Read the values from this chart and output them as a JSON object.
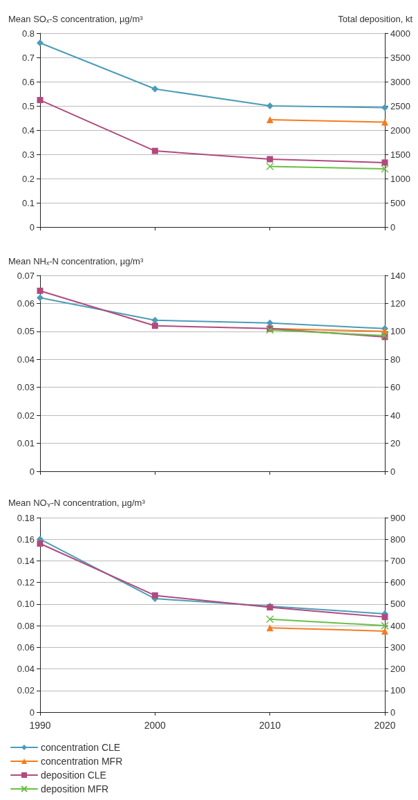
{
  "chart_data": [
    {
      "type": "line",
      "ylabel": "Mean SOₓ-S concentration, µg/m³",
      "y2label": "Total deposition, kt",
      "xlim": [
        1990,
        2020
      ],
      "xticks": [
        1990,
        2000,
        2010,
        2020
      ],
      "ylim": [
        0,
        0.8
      ],
      "yticks": [
        0,
        0.1,
        0.2,
        0.3,
        0.4,
        0.5,
        0.6,
        0.7,
        0.8
      ],
      "y2lim": [
        0,
        4000
      ],
      "y2ticks": [
        0,
        500,
        1000,
        1500,
        2000,
        2500,
        3000,
        3500,
        4000
      ],
      "grid": "y",
      "tick_labels": "y",
      "line_style": "solid",
      "series": [
        {
          "color": "#4b9cb8",
          "marker": "diamond",
          "x": [
            1990,
            2000,
            2010,
            2020
          ],
          "values": [
            0.76,
            0.57,
            0.5,
            0.493
          ]
        },
        {
          "color": "#f47c20",
          "marker": "triangle",
          "x": [
            2010,
            2020
          ],
          "values": [
            0.443,
            0.433
          ]
        },
        {
          "color": "#b04a7e",
          "marker": "square",
          "axis": "y2",
          "x": [
            1990,
            2000,
            2010,
            2020
          ],
          "values": [
            2620,
            1570,
            1400,
            1330
          ]
        },
        {
          "color": "#6abf45",
          "marker": "cross",
          "axis": "y2",
          "x": [
            2010,
            2020
          ],
          "values": [
            1250,
            1200
          ]
        }
      ]
    },
    {
      "type": "line",
      "ylabel": "Mean NHₓ-N concentration, µg/m³",
      "xlim": [
        1990,
        2020
      ],
      "xticks": [
        1990,
        2000,
        2010,
        2020
      ],
      "ylim": [
        0,
        0.07
      ],
      "yticks": [
        0,
        0.01,
        0.02,
        0.03,
        0.04,
        0.05,
        0.06,
        0.07
      ],
      "y2lim": [
        0,
        140
      ],
      "y2ticks": [
        0,
        20,
        40,
        60,
        80,
        100,
        120,
        140
      ],
      "grid": "y",
      "tick_labels": "y",
      "line_style": "solid",
      "series": [
        {
          "color": "#4b9cb8",
          "marker": "diamond",
          "x": [
            1990,
            2000,
            2010,
            2020
          ],
          "values": [
            0.062,
            0.054,
            0.053,
            0.051
          ]
        },
        {
          "color": "#f47c20",
          "marker": "triangle",
          "x": [
            2010,
            2020
          ],
          "values": [
            0.051,
            0.05
          ]
        },
        {
          "color": "#b04a7e",
          "marker": "square",
          "axis": "y2",
          "x": [
            1990,
            2000,
            2010,
            2020
          ],
          "values": [
            129,
            104,
            102,
            96
          ]
        },
        {
          "color": "#6abf45",
          "marker": "cross",
          "axis": "y2",
          "x": [
            2010,
            2020
          ],
          "values": [
            101,
            97
          ]
        }
      ]
    },
    {
      "type": "line",
      "ylabel": "Mean NO$_{Y}$-N concentration, µg/m³",
      "xlim": [
        1990,
        2020
      ],
      "xticks": [
        1990,
        2000,
        2010,
        2020
      ],
      "ylim": [
        0,
        0.18
      ],
      "yticks": [
        0,
        0.02,
        0.04,
        0.06,
        0.08,
        {
          "value": 0.1,
          "label": "0.10"
        },
        0.12,
        0.14,
        0.16,
        0.18
      ],
      "y2lim": [
        0,
        900
      ],
      "y2ticks": [
        0,
        100,
        200,
        300,
        400,
        500,
        600,
        700,
        800,
        900
      ],
      "grid": "y",
      "legend": "bottom",
      "line_style": "solid",
      "series": [
        {
          "name": "concentration CLE",
          "color": "#4b9cb8",
          "marker": "diamond",
          "x": [
            1990,
            2000,
            2010,
            2020
          ],
          "values": [
            0.16,
            0.105,
            0.098,
            0.091
          ]
        },
        {
          "name": "concentration MFR",
          "color": "#f47c20",
          "marker": "triangle",
          "x": [
            2010,
            2020
          ],
          "values": [
            0.078,
            0.075
          ]
        },
        {
          "name": "deposition CLE",
          "color": "#b04a7e",
          "marker": "square",
          "axis": "y2",
          "x": [
            1990,
            2000,
            2010,
            2020
          ],
          "values": [
            780,
            540,
            485,
            440
          ]
        },
        {
          "name": "deposition MFR",
          "color": "#6abf45",
          "marker": "cross",
          "axis": "y2",
          "x": [
            2010,
            2020
          ],
          "values": [
            430,
            400
          ]
        }
      ]
    }
  ]
}
